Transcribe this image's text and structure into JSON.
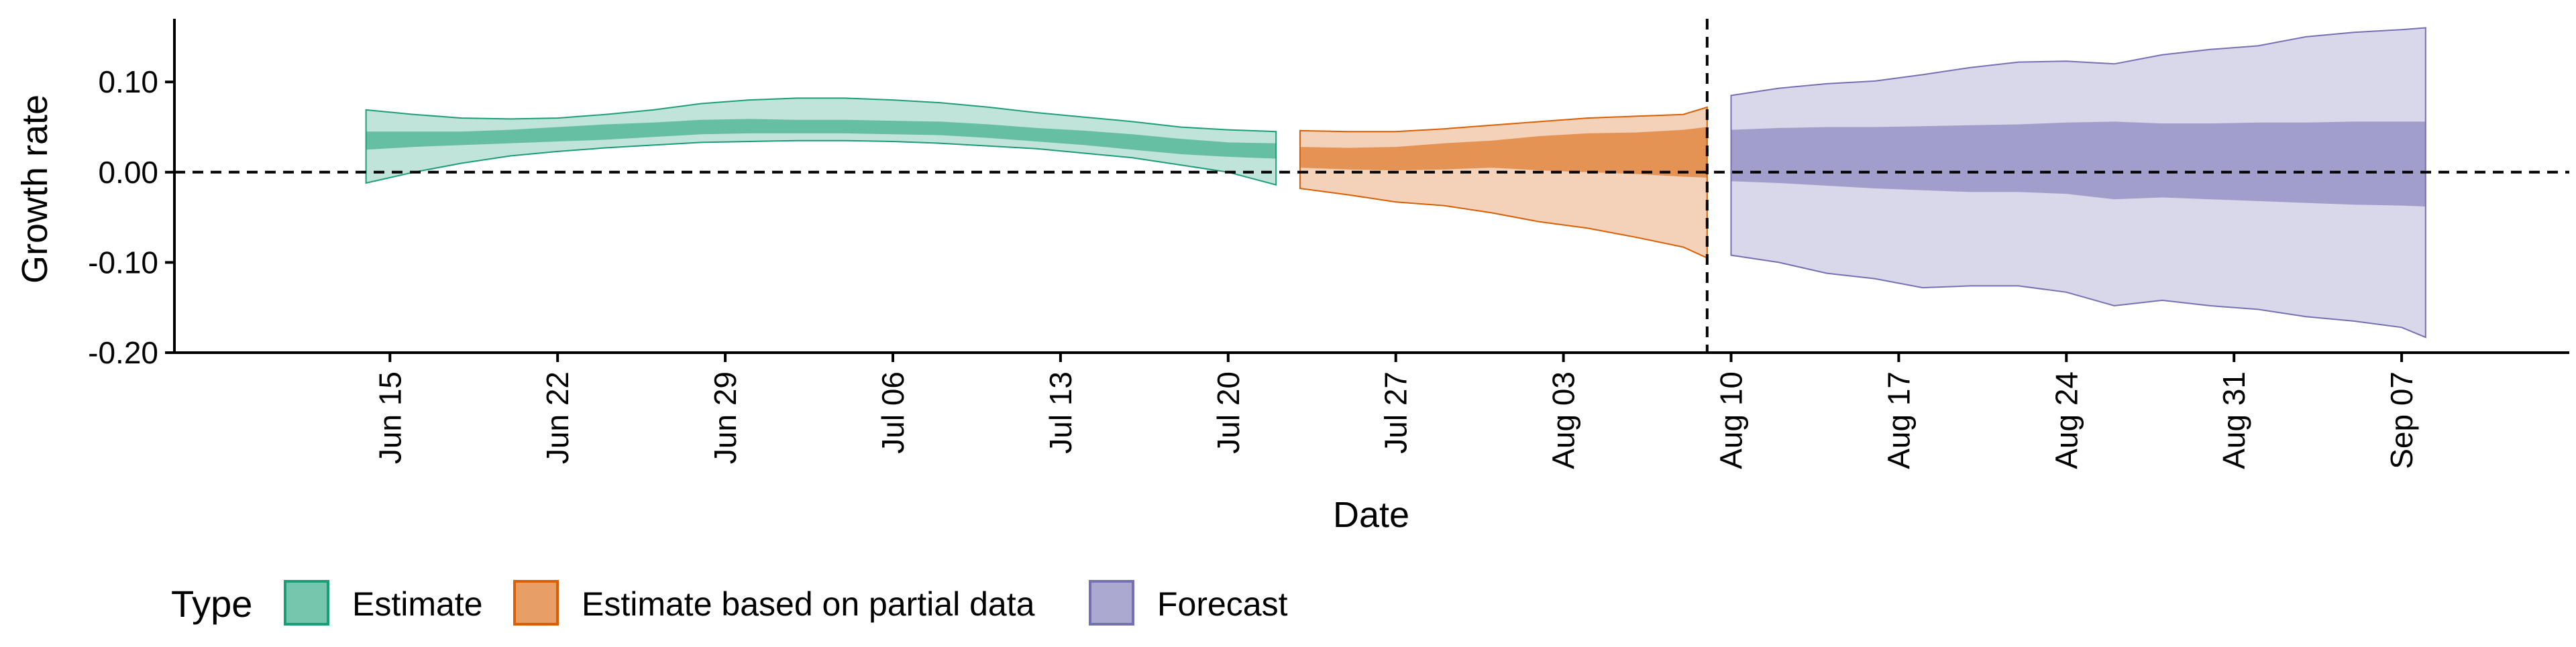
{
  "chart_data": {
    "type": "area",
    "title": "",
    "xlabel": "Date",
    "ylabel": "Growth rate",
    "x_range": [
      "2020-06-06",
      "2020-09-14"
    ],
    "ylim": [
      -0.2,
      0.17
    ],
    "y_ticks": [
      {
        "value": 0.1,
        "label": "0.10"
      },
      {
        "value": 0.0,
        "label": "0.00"
      },
      {
        "value": -0.1,
        "label": "-0.10"
      },
      {
        "value": -0.2,
        "label": "-0.20"
      }
    ],
    "x_ticks": [
      {
        "date": "2020-06-15",
        "label": "Jun 15"
      },
      {
        "date": "2020-06-22",
        "label": "Jun 22"
      },
      {
        "date": "2020-06-29",
        "label": "Jun 29"
      },
      {
        "date": "2020-07-06",
        "label": "Jul 06"
      },
      {
        "date": "2020-07-13",
        "label": "Jul 13"
      },
      {
        "date": "2020-07-20",
        "label": "Jul 20"
      },
      {
        "date": "2020-07-27",
        "label": "Jul 27"
      },
      {
        "date": "2020-08-03",
        "label": "Aug 03"
      },
      {
        "date": "2020-08-10",
        "label": "Aug 10"
      },
      {
        "date": "2020-08-17",
        "label": "Aug 17"
      },
      {
        "date": "2020-08-24",
        "label": "Aug 24"
      },
      {
        "date": "2020-08-31",
        "label": "Aug 31"
      },
      {
        "date": "2020-09-07",
        "label": "Sep 07"
      }
    ],
    "reference_lines": [
      {
        "orientation": "horizontal",
        "value": 0.0,
        "style": "dashed"
      },
      {
        "orientation": "vertical",
        "value": "2020-08-09",
        "style": "dashed"
      }
    ],
    "legend": {
      "title": "Type",
      "position": "bottom-left"
    },
    "grid": false,
    "series": [
      {
        "name": "Estimate",
        "color": "#1b9e77",
        "x": [
          "2020-06-14",
          "2020-06-16",
          "2020-06-18",
          "2020-06-20",
          "2020-06-22",
          "2020-06-24",
          "2020-06-26",
          "2020-06-28",
          "2020-06-30",
          "2020-07-02",
          "2020-07-04",
          "2020-07-06",
          "2020-07-08",
          "2020-07-10",
          "2020-07-12",
          "2020-07-14",
          "2020-07-16",
          "2020-07-18",
          "2020-07-20",
          "2020-07-22"
        ],
        "outer_lower": [
          -0.012,
          0.0,
          0.01,
          0.018,
          0.023,
          0.027,
          0.03,
          0.033,
          0.034,
          0.035,
          0.035,
          0.034,
          0.032,
          0.029,
          0.026,
          0.021,
          0.016,
          0.008,
          0.0,
          -0.014
        ],
        "inner_lower": [
          0.025,
          0.028,
          0.03,
          0.032,
          0.034,
          0.036,
          0.039,
          0.042,
          0.043,
          0.043,
          0.043,
          0.042,
          0.041,
          0.038,
          0.034,
          0.03,
          0.025,
          0.02,
          0.017,
          0.015
        ],
        "inner_upper": [
          0.045,
          0.045,
          0.045,
          0.047,
          0.05,
          0.053,
          0.055,
          0.058,
          0.059,
          0.058,
          0.058,
          0.057,
          0.056,
          0.053,
          0.049,
          0.046,
          0.042,
          0.037,
          0.033,
          0.032
        ],
        "outer_upper": [
          0.069,
          0.064,
          0.06,
          0.059,
          0.06,
          0.064,
          0.069,
          0.076,
          0.08,
          0.082,
          0.082,
          0.08,
          0.077,
          0.072,
          0.066,
          0.061,
          0.056,
          0.05,
          0.047,
          0.045
        ]
      },
      {
        "name": "Estimate based on partial data",
        "color": "#d95f02",
        "x": [
          "2020-07-23",
          "2020-07-25",
          "2020-07-27",
          "2020-07-29",
          "2020-07-31",
          "2020-08-02",
          "2020-08-04",
          "2020-08-06",
          "2020-08-08",
          "2020-08-09"
        ],
        "outer_lower": [
          -0.018,
          -0.025,
          -0.033,
          -0.037,
          -0.045,
          -0.055,
          -0.062,
          -0.072,
          -0.083,
          -0.095
        ],
        "inner_lower": [
          0.005,
          0.003,
          0.002,
          0.003,
          0.005,
          0.002,
          0.0,
          -0.002,
          -0.005,
          -0.006
        ],
        "inner_upper": [
          0.028,
          0.027,
          0.028,
          0.032,
          0.035,
          0.04,
          0.043,
          0.044,
          0.047,
          0.05
        ],
        "outer_upper": [
          0.046,
          0.045,
          0.045,
          0.048,
          0.052,
          0.056,
          0.06,
          0.062,
          0.064,
          0.072
        ]
      },
      {
        "name": "Forecast",
        "color": "#7570b3",
        "x": [
          "2020-08-10",
          "2020-08-12",
          "2020-08-14",
          "2020-08-16",
          "2020-08-18",
          "2020-08-20",
          "2020-08-22",
          "2020-08-24",
          "2020-08-26",
          "2020-08-28",
          "2020-08-30",
          "2020-09-01",
          "2020-09-03",
          "2020-09-05",
          "2020-09-07",
          "2020-09-08"
        ],
        "outer_lower": [
          -0.092,
          -0.1,
          -0.112,
          -0.118,
          -0.128,
          -0.126,
          -0.126,
          -0.133,
          -0.148,
          -0.142,
          -0.148,
          -0.152,
          -0.16,
          -0.165,
          -0.172,
          -0.183
        ],
        "inner_lower": [
          -0.01,
          -0.012,
          -0.015,
          -0.018,
          -0.02,
          -0.022,
          -0.022,
          -0.024,
          -0.03,
          -0.028,
          -0.03,
          -0.032,
          -0.034,
          -0.036,
          -0.037,
          -0.038
        ],
        "inner_upper": [
          0.047,
          0.049,
          0.05,
          0.05,
          0.051,
          0.052,
          0.053,
          0.055,
          0.056,
          0.054,
          0.054,
          0.055,
          0.055,
          0.056,
          0.056,
          0.056
        ],
        "outer_upper": [
          0.085,
          0.093,
          0.098,
          0.101,
          0.108,
          0.116,
          0.122,
          0.123,
          0.12,
          0.13,
          0.136,
          0.14,
          0.15,
          0.155,
          0.158,
          0.16
        ]
      }
    ]
  }
}
